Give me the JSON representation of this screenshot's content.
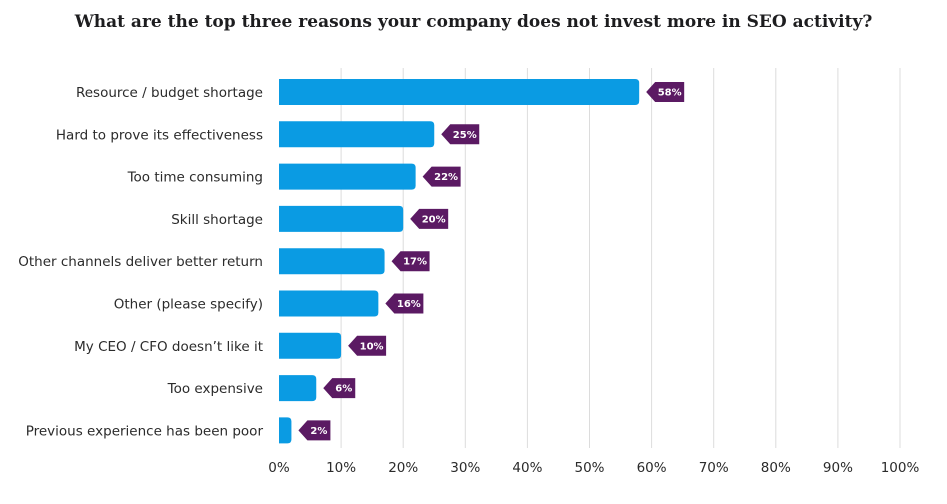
{
  "chart_data": {
    "type": "bar",
    "orientation": "horizontal",
    "title": "What are the top three reasons your company does not invest more in SEO activity?",
    "categories": [
      "Resource / budget shortage",
      "Hard to prove its effectiveness",
      "Too time consuming",
      "Skill shortage",
      "Other channels deliver better return",
      "Other (please specify)",
      "My CEO / CFO doesn’t like it",
      "Too expensive",
      "Previous experience has been poor"
    ],
    "values": [
      58,
      25,
      22,
      20,
      17,
      16,
      10,
      6,
      2
    ],
    "data_labels": [
      "58%",
      "25%",
      "22%",
      "20%",
      "17%",
      "16%",
      "10%",
      "6%",
      "2%"
    ],
    "xlim": [
      0,
      100
    ],
    "x_ticks": [
      0,
      10,
      20,
      30,
      40,
      50,
      60,
      70,
      80,
      90,
      100
    ],
    "x_tick_labels": [
      "0%",
      "10%",
      "20%",
      "30%",
      "40%",
      "50%",
      "60%",
      "70%",
      "80%",
      "90%",
      "100%"
    ],
    "grid": true,
    "legend": "none",
    "bar_color": "#0a9be3",
    "label_color": "#5b1a63",
    "grid_color": "#dcdcdc"
  }
}
